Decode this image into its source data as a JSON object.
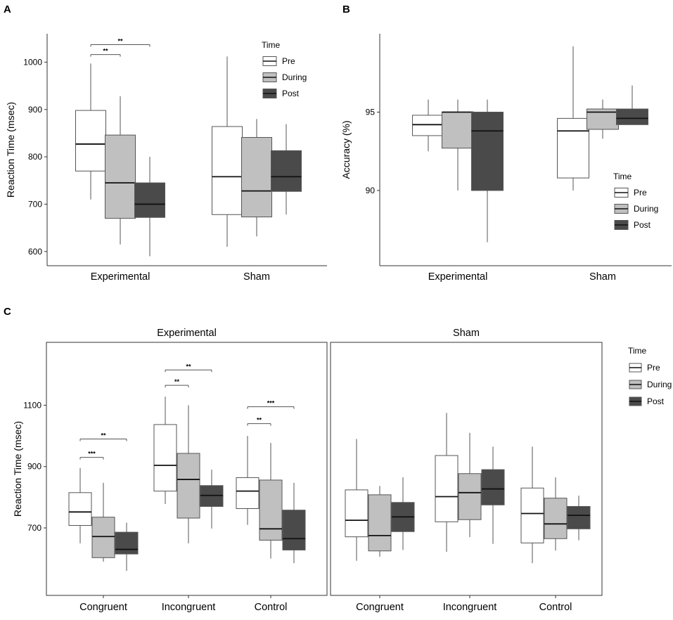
{
  "chart_data": [
    {
      "id": "A",
      "panel_label": "A",
      "type": "box",
      "ylabel": "Reaction Time (msec)",
      "ylim": [
        570,
        1060
      ],
      "yticks": [
        600,
        700,
        800,
        900,
        1000
      ],
      "groups": [
        "Experimental",
        "Sham"
      ],
      "series_names": [
        "Pre",
        "During",
        "Post"
      ],
      "legend": {
        "title": "Time",
        "position": "top-right",
        "labels": [
          "Pre",
          "During",
          "Post"
        ]
      },
      "boxes": [
        {
          "group": "Experimental",
          "series": "Pre",
          "min": 710,
          "q1": 770,
          "median": 827,
          "q3": 898,
          "max": 997
        },
        {
          "group": "Experimental",
          "series": "During",
          "min": 615,
          "q1": 670,
          "median": 745,
          "q3": 846,
          "max": 928
        },
        {
          "group": "Experimental",
          "series": "Post",
          "min": 590,
          "q1": 672,
          "median": 700,
          "q3": 745,
          "max": 800
        },
        {
          "group": "Sham",
          "series": "Pre",
          "min": 610,
          "q1": 678,
          "median": 758,
          "q3": 864,
          "max": 1012
        },
        {
          "group": "Sham",
          "series": "During",
          "min": 632,
          "q1": 673,
          "median": 728,
          "q3": 841,
          "max": 880
        },
        {
          "group": "Sham",
          "series": "Post",
          "min": 678,
          "q1": 727,
          "median": 758,
          "q3": 813,
          "max": 869
        }
      ],
      "significance": [
        {
          "group": "Experimental",
          "from": "Pre",
          "to": "During",
          "label": "**",
          "y": 1016
        },
        {
          "group": "Experimental",
          "from": "Pre",
          "to": "Post",
          "label": "**",
          "y": 1037
        }
      ]
    },
    {
      "id": "B",
      "panel_label": "B",
      "type": "box",
      "ylabel": "Accuracy (%)",
      "ylim": [
        85.2,
        100.0
      ],
      "yticks": [
        90,
        95
      ],
      "groups": [
        "Experimental",
        "Sham"
      ],
      "series_names": [
        "Pre",
        "During",
        "Post"
      ],
      "legend": {
        "title": "Time",
        "position": "right",
        "labels": [
          "Pre",
          "During",
          "Post"
        ]
      },
      "boxes": [
        {
          "group": "Experimental",
          "series": "Pre",
          "min": 92.5,
          "q1": 93.5,
          "median": 94.2,
          "q3": 94.8,
          "max": 95.8
        },
        {
          "group": "Experimental",
          "series": "During",
          "min": 90.0,
          "q1": 92.7,
          "median": 95.0,
          "q3": 95.0,
          "max": 95.8
        },
        {
          "group": "Experimental",
          "series": "Post",
          "min": 86.7,
          "q1": 90.0,
          "median": 93.8,
          "q3": 95.0,
          "max": 95.8
        },
        {
          "group": "Sham",
          "series": "Pre",
          "min": 90.0,
          "q1": 90.8,
          "median": 93.8,
          "q3": 94.6,
          "max": 99.2
        },
        {
          "group": "Sham",
          "series": "During",
          "min": 93.3,
          "q1": 93.9,
          "median": 95.0,
          "q3": 95.2,
          "max": 95.8
        },
        {
          "group": "Sham",
          "series": "Post",
          "min": 94.2,
          "q1": 94.2,
          "median": 94.6,
          "q3": 95.2,
          "max": 96.7
        }
      ],
      "significance": []
    },
    {
      "id": "C",
      "panel_label": "C",
      "type": "box",
      "ylabel": "Reaction Time (msec)",
      "ylim": [
        480,
        1305
      ],
      "yticks": [
        700,
        900,
        1100
      ],
      "facets": [
        "Experimental",
        "Sham"
      ],
      "groups": [
        "Congruent",
        "Incongruent",
        "Control"
      ],
      "series_names": [
        "Pre",
        "During",
        "Post"
      ],
      "legend": {
        "title": "Time",
        "position": "right",
        "labels": [
          "Pre",
          "During",
          "Post"
        ]
      },
      "boxes": [
        {
          "facet": "Experimental",
          "group": "Congruent",
          "series": "Pre",
          "min": 650,
          "q1": 708,
          "median": 752,
          "q3": 815,
          "max": 895
        },
        {
          "facet": "Experimental",
          "group": "Congruent",
          "series": "During",
          "min": 590,
          "q1": 603,
          "median": 672,
          "q3": 735,
          "max": 847
        },
        {
          "facet": "Experimental",
          "group": "Congruent",
          "series": "Post",
          "min": 560,
          "q1": 615,
          "median": 630,
          "q3": 686,
          "max": 717
        },
        {
          "facet": "Experimental",
          "group": "Incongruent",
          "series": "Pre",
          "min": 778,
          "q1": 820,
          "median": 904,
          "q3": 1037,
          "max": 1128
        },
        {
          "facet": "Experimental",
          "group": "Incongruent",
          "series": "During",
          "min": 650,
          "q1": 732,
          "median": 858,
          "q3": 943,
          "max": 1100
        },
        {
          "facet": "Experimental",
          "group": "Incongruent",
          "series": "Post",
          "min": 698,
          "q1": 770,
          "median": 806,
          "q3": 838,
          "max": 890
        },
        {
          "facet": "Experimental",
          "group": "Control",
          "series": "Pre",
          "min": 710,
          "q1": 763,
          "median": 820,
          "q3": 864,
          "max": 1000
        },
        {
          "facet": "Experimental",
          "group": "Control",
          "series": "During",
          "min": 600,
          "q1": 660,
          "median": 697,
          "q3": 856,
          "max": 977
        },
        {
          "facet": "Experimental",
          "group": "Control",
          "series": "Post",
          "min": 585,
          "q1": 628,
          "median": 665,
          "q3": 758,
          "max": 847
        },
        {
          "facet": "Sham",
          "group": "Congruent",
          "series": "Pre",
          "min": 593,
          "q1": 671,
          "median": 725,
          "q3": 824,
          "max": 990
        },
        {
          "facet": "Sham",
          "group": "Congruent",
          "series": "During",
          "min": 606,
          "q1": 625,
          "median": 675,
          "q3": 808,
          "max": 837
        },
        {
          "facet": "Sham",
          "group": "Congruent",
          "series": "Post",
          "min": 628,
          "q1": 688,
          "median": 736,
          "q3": 783,
          "max": 865
        },
        {
          "facet": "Sham",
          "group": "Incongruent",
          "series": "Pre",
          "min": 622,
          "q1": 720,
          "median": 802,
          "q3": 936,
          "max": 1075
        },
        {
          "facet": "Sham",
          "group": "Incongruent",
          "series": "During",
          "min": 670,
          "q1": 727,
          "median": 815,
          "q3": 877,
          "max": 1010
        },
        {
          "facet": "Sham",
          "group": "Incongruent",
          "series": "Post",
          "min": 648,
          "q1": 775,
          "median": 827,
          "q3": 890,
          "max": 965
        },
        {
          "facet": "Sham",
          "group": "Control",
          "series": "Pre",
          "min": 585,
          "q1": 651,
          "median": 747,
          "q3": 830,
          "max": 965
        },
        {
          "facet": "Sham",
          "group": "Control",
          "series": "During",
          "min": 626,
          "q1": 665,
          "median": 713,
          "q3": 797,
          "max": 865
        },
        {
          "facet": "Sham",
          "group": "Control",
          "series": "Post",
          "min": 660,
          "q1": 697,
          "median": 741,
          "q3": 770,
          "max": 805
        }
      ],
      "significance": [
        {
          "facet": "Experimental",
          "group": "Congruent",
          "from": "Pre",
          "to": "During",
          "label": "***",
          "y": 930
        },
        {
          "facet": "Experimental",
          "group": "Congruent",
          "from": "Pre",
          "to": "Post",
          "label": "**",
          "y": 990
        },
        {
          "facet": "Experimental",
          "group": "Incongruent",
          "from": "Pre",
          "to": "During",
          "label": "**",
          "y": 1165
        },
        {
          "facet": "Experimental",
          "group": "Incongruent",
          "from": "Pre",
          "to": "Post",
          "label": "**",
          "y": 1215
        },
        {
          "facet": "Experimental",
          "group": "Control",
          "from": "Pre",
          "to": "During",
          "label": "**",
          "y": 1040
        },
        {
          "facet": "Experimental",
          "group": "Control",
          "from": "Pre",
          "to": "Post",
          "label": "***",
          "y": 1095
        }
      ]
    }
  ],
  "colors": {
    "Pre": "#ffffff",
    "During": "#c0c0c0",
    "Post": "#4a4a4a",
    "outline": "#555555"
  }
}
